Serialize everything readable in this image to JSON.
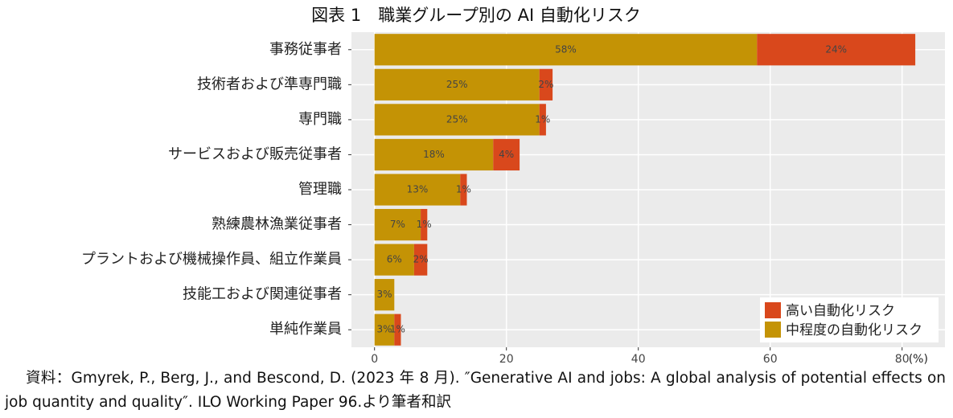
{
  "chart_data": {
    "type": "stacked-barh",
    "title": "図表 1　職業グループ別の AI 自動化リスク",
    "xlabel": "(%)",
    "categories": [
      "事務従事者",
      "技術者および準専門職",
      "専門職",
      "サービスおよび販売従事者",
      "管理職",
      "熟練農林漁業従事者",
      "プラントおよび機械操作員、組立作業員",
      "技能工および関連従事者",
      "単純作業員"
    ],
    "series": [
      {
        "name": "中程度の自動化リスク",
        "color": "#c49305",
        "values": [
          58,
          25,
          25,
          18,
          13,
          7,
          6,
          3,
          3
        ],
        "value_labels": [
          "58%",
          "25%",
          "25%",
          "18%",
          "13%",
          "7%",
          "6%",
          "3%",
          "3%"
        ]
      },
      {
        "name": "高い自動化リスク",
        "color": "#d9481c",
        "values": [
          24,
          2,
          1,
          4,
          1,
          1,
          2,
          null,
          1
        ],
        "value_labels": [
          "24%",
          "2%",
          "1%",
          "4%",
          "1%",
          "1%",
          "2%",
          null,
          "1%"
        ]
      }
    ],
    "xlim": [
      -3.5,
      86.5
    ],
    "xticks": [
      0,
      20,
      40,
      60,
      80
    ],
    "grid": true,
    "legend": "bottom-right",
    "note": "資料：Gmyrek, P., Berg, J., and Bescond, D. (2023 年 8 月). ″Generative AI and jobs: A global analysis of potential effects on job quantity and quality″. ILO Working Paper 96.より筆者和訳"
  }
}
